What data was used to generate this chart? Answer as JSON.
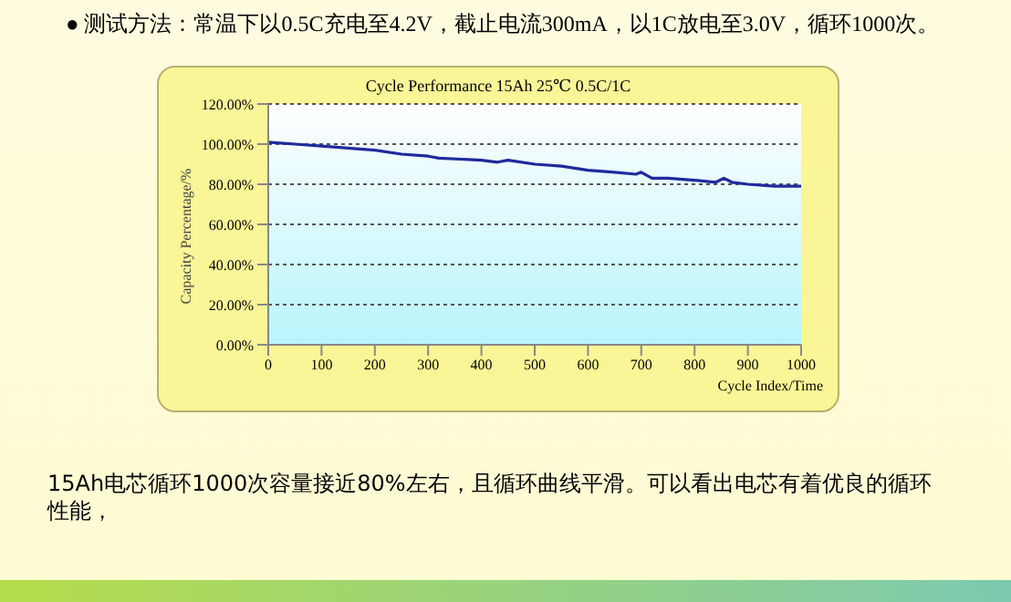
{
  "chart_data": {
    "type": "line",
    "title": "Cycle Performance 15Ah 25℃ 0.5C/1C",
    "xlabel": "Cycle Index/Time",
    "ylabel": "Capacity Percentage/%",
    "annotations": [
      "● 测试方法：常温下以0.5C充电至4.2V，截止电流300mA，以1C放电至3.0V，循环1000次。",
      "15Ah电芯循环1000次容量接近80%左右，且循环曲线平滑。可以看出电芯有着优良的循环性能，"
    ],
    "x": [
      0,
      50,
      100,
      150,
      200,
      250,
      300,
      320,
      400,
      430,
      450,
      500,
      550,
      600,
      650,
      690,
      700,
      720,
      750,
      800,
      840,
      855,
      870,
      900,
      950,
      1000
    ],
    "series": [
      {
        "color": "#1f2a9c",
        "values": [
          101,
          100,
          99,
          98,
          97,
          95,
          94,
          93,
          92,
          91,
          92,
          90,
          89,
          87,
          86,
          85,
          86,
          83,
          83,
          82,
          81,
          83,
          81,
          80,
          79,
          79
        ]
      }
    ],
    "xlim": [
      0,
      1000
    ],
    "xticks": [
      0,
      100,
      200,
      300,
      400,
      500,
      600,
      700,
      800,
      900,
      1000
    ],
    "ylim": [
      0,
      120
    ],
    "yticks": [
      {
        "value": 0,
        "label": "0.00%"
      },
      {
        "value": 20,
        "label": "20.00%"
      },
      {
        "value": 40,
        "label": "40.00%"
      },
      {
        "value": 60,
        "label": "60.00%"
      },
      {
        "value": 80,
        "label": "80.00%"
      },
      {
        "value": 100,
        "label": "100.00%"
      },
      {
        "value": 120,
        "label": "120.00%"
      }
    ],
    "grid": "y",
    "marker": "none",
    "line_style": "solid",
    "legend": false
  }
}
